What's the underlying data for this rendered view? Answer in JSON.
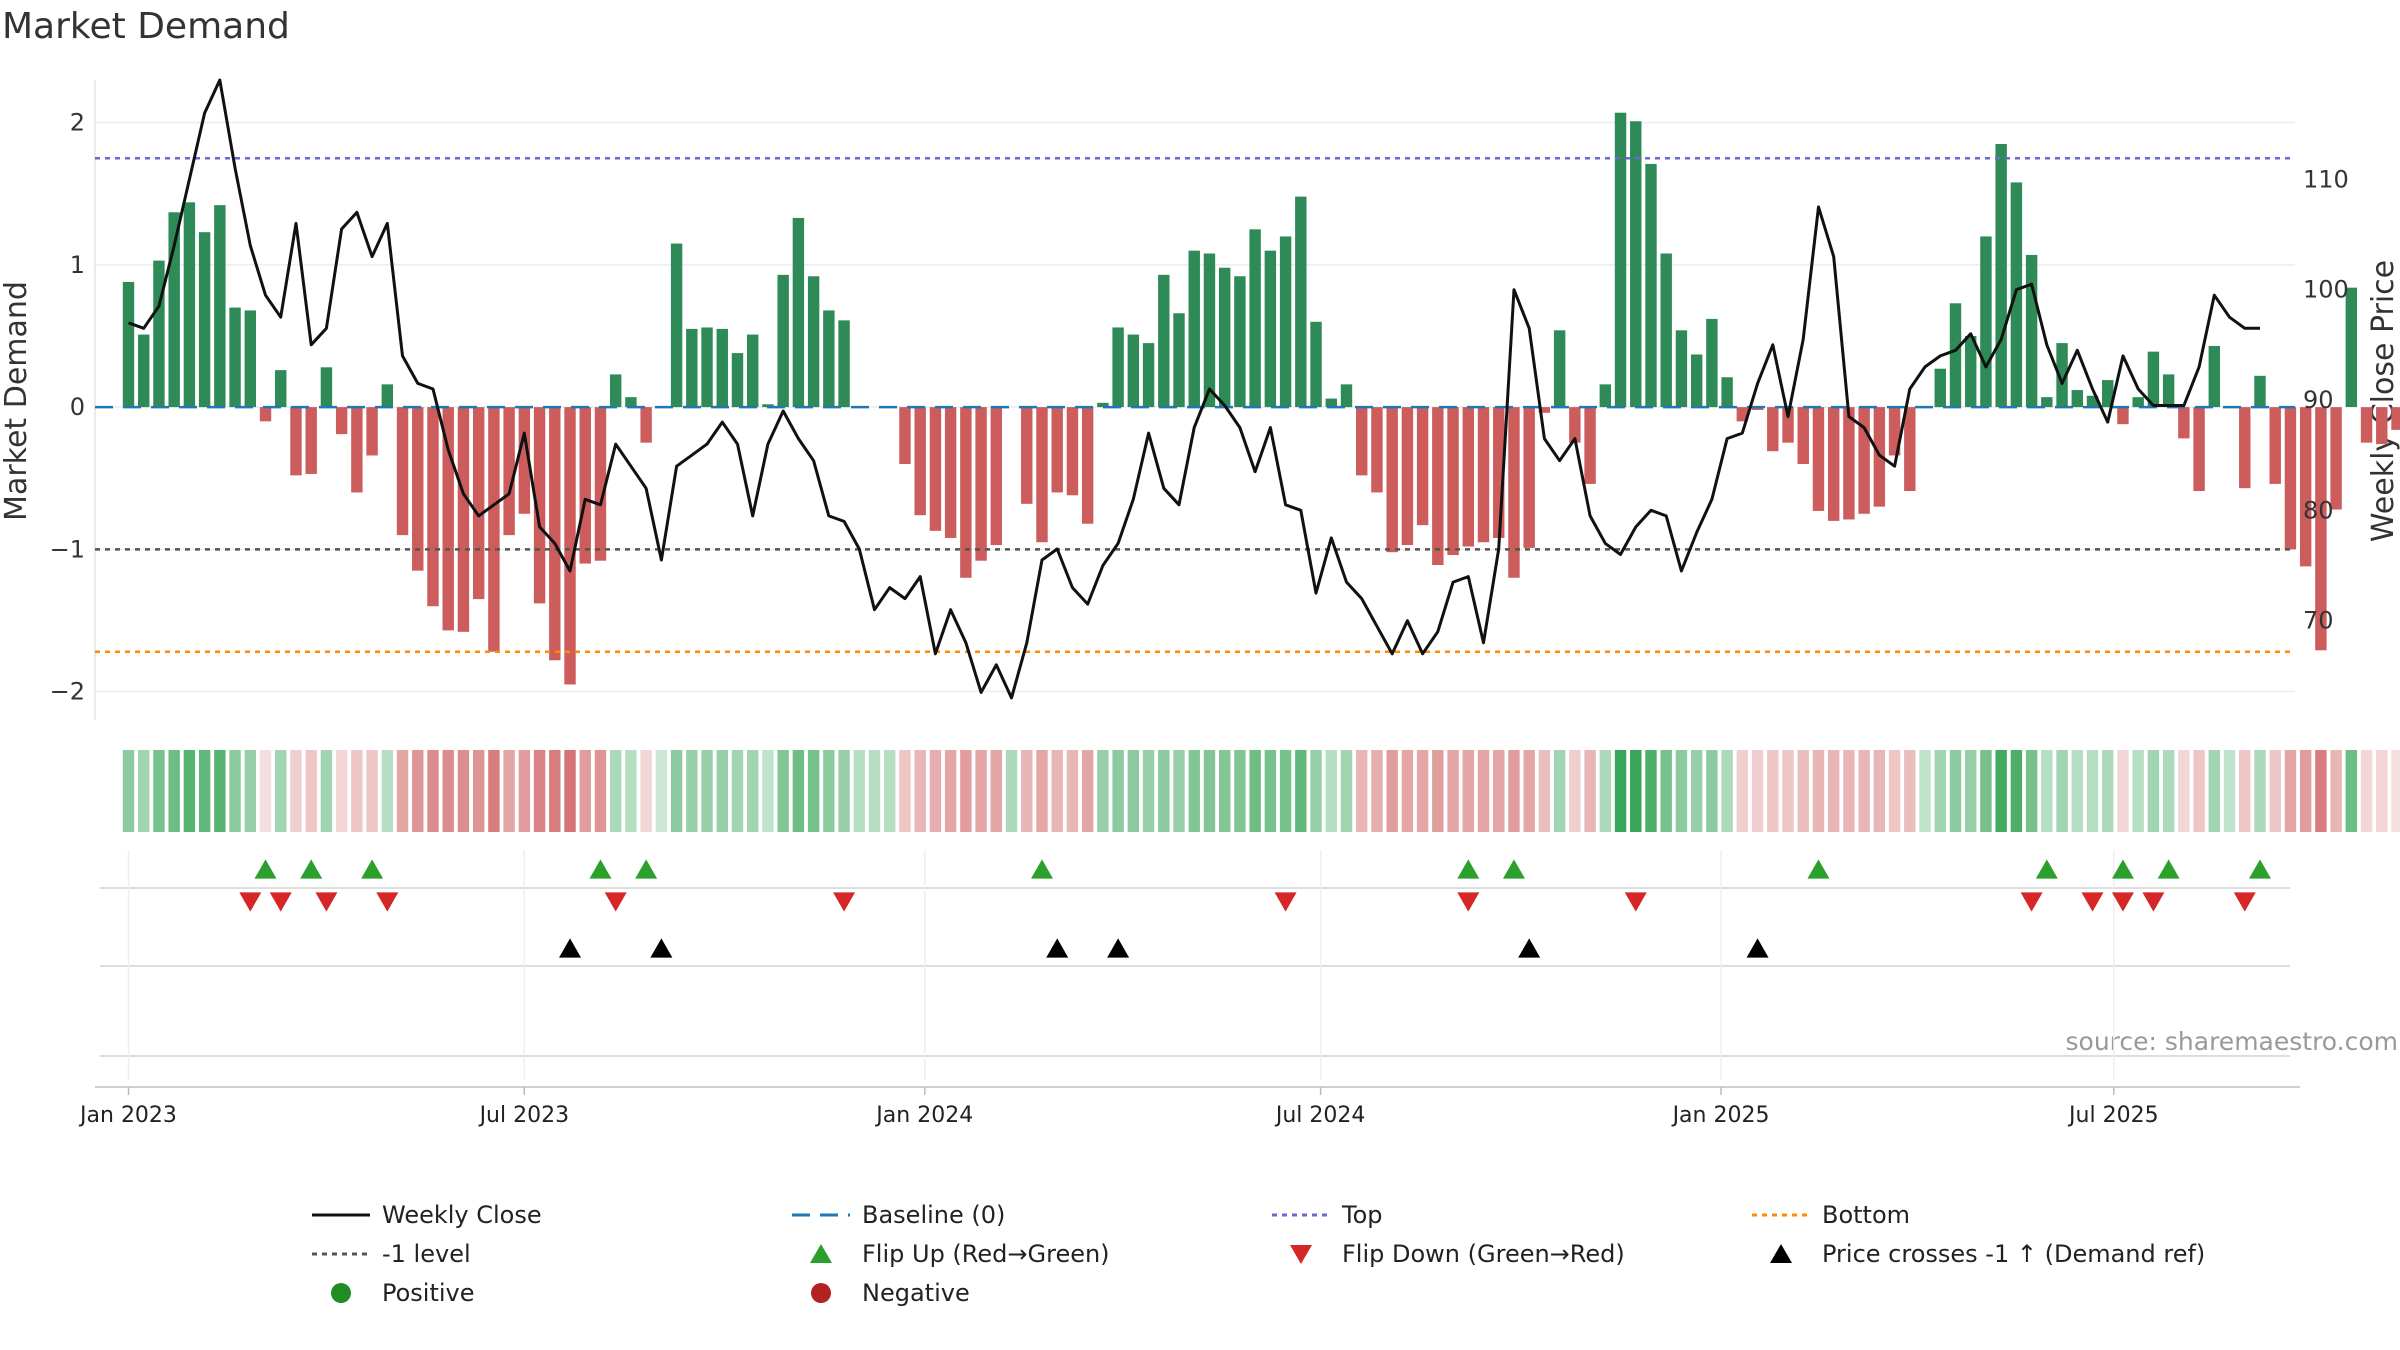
{
  "chart_data": {
    "type": "bar",
    "title": "Market Demand",
    "ylabel": "Market Demand",
    "y2label": "Weekly Close Price",
    "ylim": [
      -2.2,
      2.3
    ],
    "y2lim": [
      61,
      119
    ],
    "yticks": [
      -2,
      -1,
      0,
      1,
      2
    ],
    "ytick_labels": [
      "−2",
      "−1",
      "0",
      "1",
      "2"
    ],
    "y2ticks": [
      70,
      80,
      90,
      100,
      110
    ],
    "y2tick_labels": [
      "70",
      "80",
      "90",
      "100",
      "110"
    ],
    "xticks": [
      0,
      26,
      52.3,
      78.3,
      104.6,
      130.4
    ],
    "xtick_labels": [
      "Jan 2023",
      "Jul 2023",
      "Jan 2024",
      "Jul 2024",
      "Jan 2025",
      "Jul 2025"
    ],
    "x_range": [
      -2.2,
      142.3
    ],
    "reference_lines": {
      "top": 1.75,
      "bottom": -1.72,
      "minus_one": -1.0,
      "baseline": 0
    },
    "demand": [
      0.88,
      0.51,
      1.03,
      1.37,
      1.44,
      1.23,
      1.42,
      0.7,
      0.68,
      -0.1,
      0.26,
      -0.48,
      -0.47,
      0.28,
      -0.19,
      -0.6,
      -0.34,
      0.16,
      -0.9,
      -1.15,
      -1.4,
      -1.57,
      -1.58,
      -1.35,
      -1.72,
      -0.9,
      -0.75,
      -1.38,
      -1.78,
      -1.95,
      -1.1,
      -1.08,
      0.23,
      0.07,
      -0.25,
      0.0,
      1.15,
      0.55,
      0.56,
      0.55,
      0.38,
      0.51,
      0.02,
      0.93,
      1.33,
      0.92,
      0.68,
      0.61,
      0,
      0,
      0,
      -0.4,
      -0.76,
      -0.87,
      -0.92,
      -1.2,
      -1.08,
      -0.97,
      -0.0,
      -0.68,
      -0.95,
      -0.6,
      -0.62,
      -0.82,
      0.03,
      0.56,
      0.51,
      0.45,
      0.93,
      0.66,
      1.1,
      1.08,
      0.98,
      0.92,
      1.25,
      1.1,
      1.2,
      1.48,
      0.6,
      0.06,
      0.16,
      -0.48,
      -0.6,
      -1.02,
      -0.97,
      -0.83,
      -1.11,
      -1.04,
      -0.98,
      -0.95,
      -0.92,
      -1.2,
      -0.99,
      -0.04,
      0.54,
      -0.25,
      -0.54,
      0.16,
      2.07,
      2.01,
      1.71,
      1.08,
      0.54,
      0.37,
      0.62,
      0.21,
      -0.1,
      -0.02,
      -0.31,
      -0.25,
      -0.4,
      -0.73,
      -0.8,
      -0.79,
      -0.75,
      -0.7,
      -0.34,
      -0.59,
      0.0,
      0.27,
      0.73,
      0.5,
      1.2,
      1.85,
      1.58,
      1.07,
      0.07,
      0.45,
      0.12,
      0.08,
      0.19,
      -0.12,
      0.07,
      0.39,
      0.23,
      -0.22,
      -0.59,
      0.43,
      -0.0,
      -0.57,
      0.22,
      -0.54,
      -1.0,
      -1.12,
      -1.71,
      -0.72,
      0.84,
      -0.25,
      -0.26,
      -0.16
    ],
    "close": [
      97,
      96.5,
      98.5,
      104,
      110,
      116,
      119,
      111,
      104,
      99.5,
      97.5,
      106,
      95,
      96.5,
      105.5,
      107,
      103,
      106,
      94,
      91.5,
      91,
      85.5,
      81.5,
      79.5,
      80.5,
      81.5,
      87,
      78.5,
      77,
      74.5,
      81,
      80.5,
      86,
      84,
      82,
      75.5,
      84,
      85,
      86,
      88,
      86,
      79.5,
      86,
      89,
      86.5,
      84.5,
      79.5,
      79,
      76.5,
      71,
      73,
      72,
      74,
      67,
      71,
      68,
      63.5,
      66,
      63,
      68,
      75.5,
      76.5,
      73,
      71.5,
      75,
      77,
      81,
      87,
      82,
      80.5,
      87.5,
      91,
      89.5,
      87.5,
      83.5,
      87.5,
      80.5,
      80,
      72.5,
      77.5,
      73.5,
      72,
      69.5,
      67,
      70,
      67,
      69,
      73.5,
      74,
      68,
      76.5,
      100,
      96.5,
      86.5,
      84.5,
      86.5,
      79.5,
      77,
      76,
      78.5,
      80,
      79.5,
      74.5,
      78,
      81,
      86.5,
      87,
      91.5,
      95,
      88.5,
      95.5,
      107.5,
      103,
      88.5,
      87.5,
      85,
      84,
      91,
      93,
      94,
      94.5,
      96,
      93,
      95.5,
      100,
      100.5,
      95,
      91.5,
      94.5,
      91,
      88,
      94,
      91,
      89.5,
      89.5,
      89.5,
      93,
      99.5,
      97.5,
      96.5,
      96.5
    ],
    "strip_intensity": [
      0.55,
      0.45,
      0.65,
      0.7,
      0.8,
      0.75,
      0.8,
      0.55,
      0.5,
      0.2,
      0.45,
      0.3,
      0.35,
      0.45,
      0.25,
      0.35,
      0.35,
      0.35,
      0.55,
      0.65,
      0.7,
      0.7,
      0.7,
      0.65,
      0.8,
      0.55,
      0.6,
      0.75,
      0.8,
      0.85,
      0.6,
      0.65,
      0.4,
      0.35,
      0.25,
      0.25,
      0.55,
      0.5,
      0.5,
      0.5,
      0.45,
      0.45,
      0.3,
      0.6,
      0.7,
      0.65,
      0.55,
      0.5,
      0.35,
      0.35,
      0.35,
      0.35,
      0.45,
      0.5,
      0.55,
      0.6,
      0.55,
      0.55,
      0.4,
      0.45,
      0.55,
      0.45,
      0.45,
      0.55,
      0.5,
      0.55,
      0.55,
      0.5,
      0.55,
      0.5,
      0.6,
      0.6,
      0.6,
      0.6,
      0.7,
      0.65,
      0.65,
      0.75,
      0.5,
      0.35,
      0.45,
      0.45,
      0.5,
      0.6,
      0.55,
      0.55,
      0.6,
      0.55,
      0.55,
      0.55,
      0.55,
      0.6,
      0.55,
      0.4,
      0.45,
      0.3,
      0.45,
      0.4,
      0.95,
      0.95,
      0.85,
      0.65,
      0.55,
      0.5,
      0.55,
      0.4,
      0.3,
      0.3,
      0.35,
      0.35,
      0.4,
      0.45,
      0.45,
      0.45,
      0.45,
      0.45,
      0.35,
      0.4,
      0.3,
      0.45,
      0.55,
      0.5,
      0.65,
      0.9,
      0.85,
      0.65,
      0.35,
      0.45,
      0.35,
      0.35,
      0.4,
      0.25,
      0.35,
      0.45,
      0.4,
      0.25,
      0.35,
      0.45,
      0.3,
      0.35,
      0.4,
      0.35,
      0.55,
      0.6,
      0.8,
      0.45,
      0.7,
      0.25,
      0.25,
      0.2
    ],
    "flip_up": [
      9,
      12,
      16,
      31,
      34,
      60,
      88,
      91,
      111,
      126,
      131,
      134,
      140
    ],
    "flip_down": [
      8,
      10,
      13,
      17,
      32,
      47,
      76,
      88,
      99,
      125,
      129,
      131,
      133,
      139
    ],
    "price_cross": [
      29,
      35,
      61,
      65,
      92,
      107
    ]
  },
  "source": "source: sharemaestro.com",
  "colors": {
    "positive_bar": "#2e8b57",
    "negative_bar": "#cd5c5c",
    "close_line": "#111111",
    "baseline": "#1f77b4",
    "top": "#6a6acd",
    "minus_one": "#555555",
    "bottom": "#ff8c00",
    "flip_up": "#2ca02c",
    "flip_down": "#d62728",
    "price_cross": "#000000",
    "positive_dot": "#228b22",
    "negative_dot": "#b22222"
  },
  "legend": [
    {
      "key": "close",
      "label": "Weekly Close"
    },
    {
      "key": "baseline",
      "label": "Baseline (0)"
    },
    {
      "key": "top",
      "label": "Top"
    },
    {
      "key": "bottom",
      "label": "Bottom"
    },
    {
      "key": "minus_one",
      "label": "-1 level"
    },
    {
      "key": "flip_up",
      "label": "Flip Up (Red→Green)"
    },
    {
      "key": "flip_down",
      "label": "Flip Down (Green→Red)"
    },
    {
      "key": "price_cross",
      "label": "Price crosses -1 ↑ (Demand ref)"
    },
    {
      "key": "positive",
      "label": "Positive"
    },
    {
      "key": "negative",
      "label": "Negative"
    }
  ]
}
